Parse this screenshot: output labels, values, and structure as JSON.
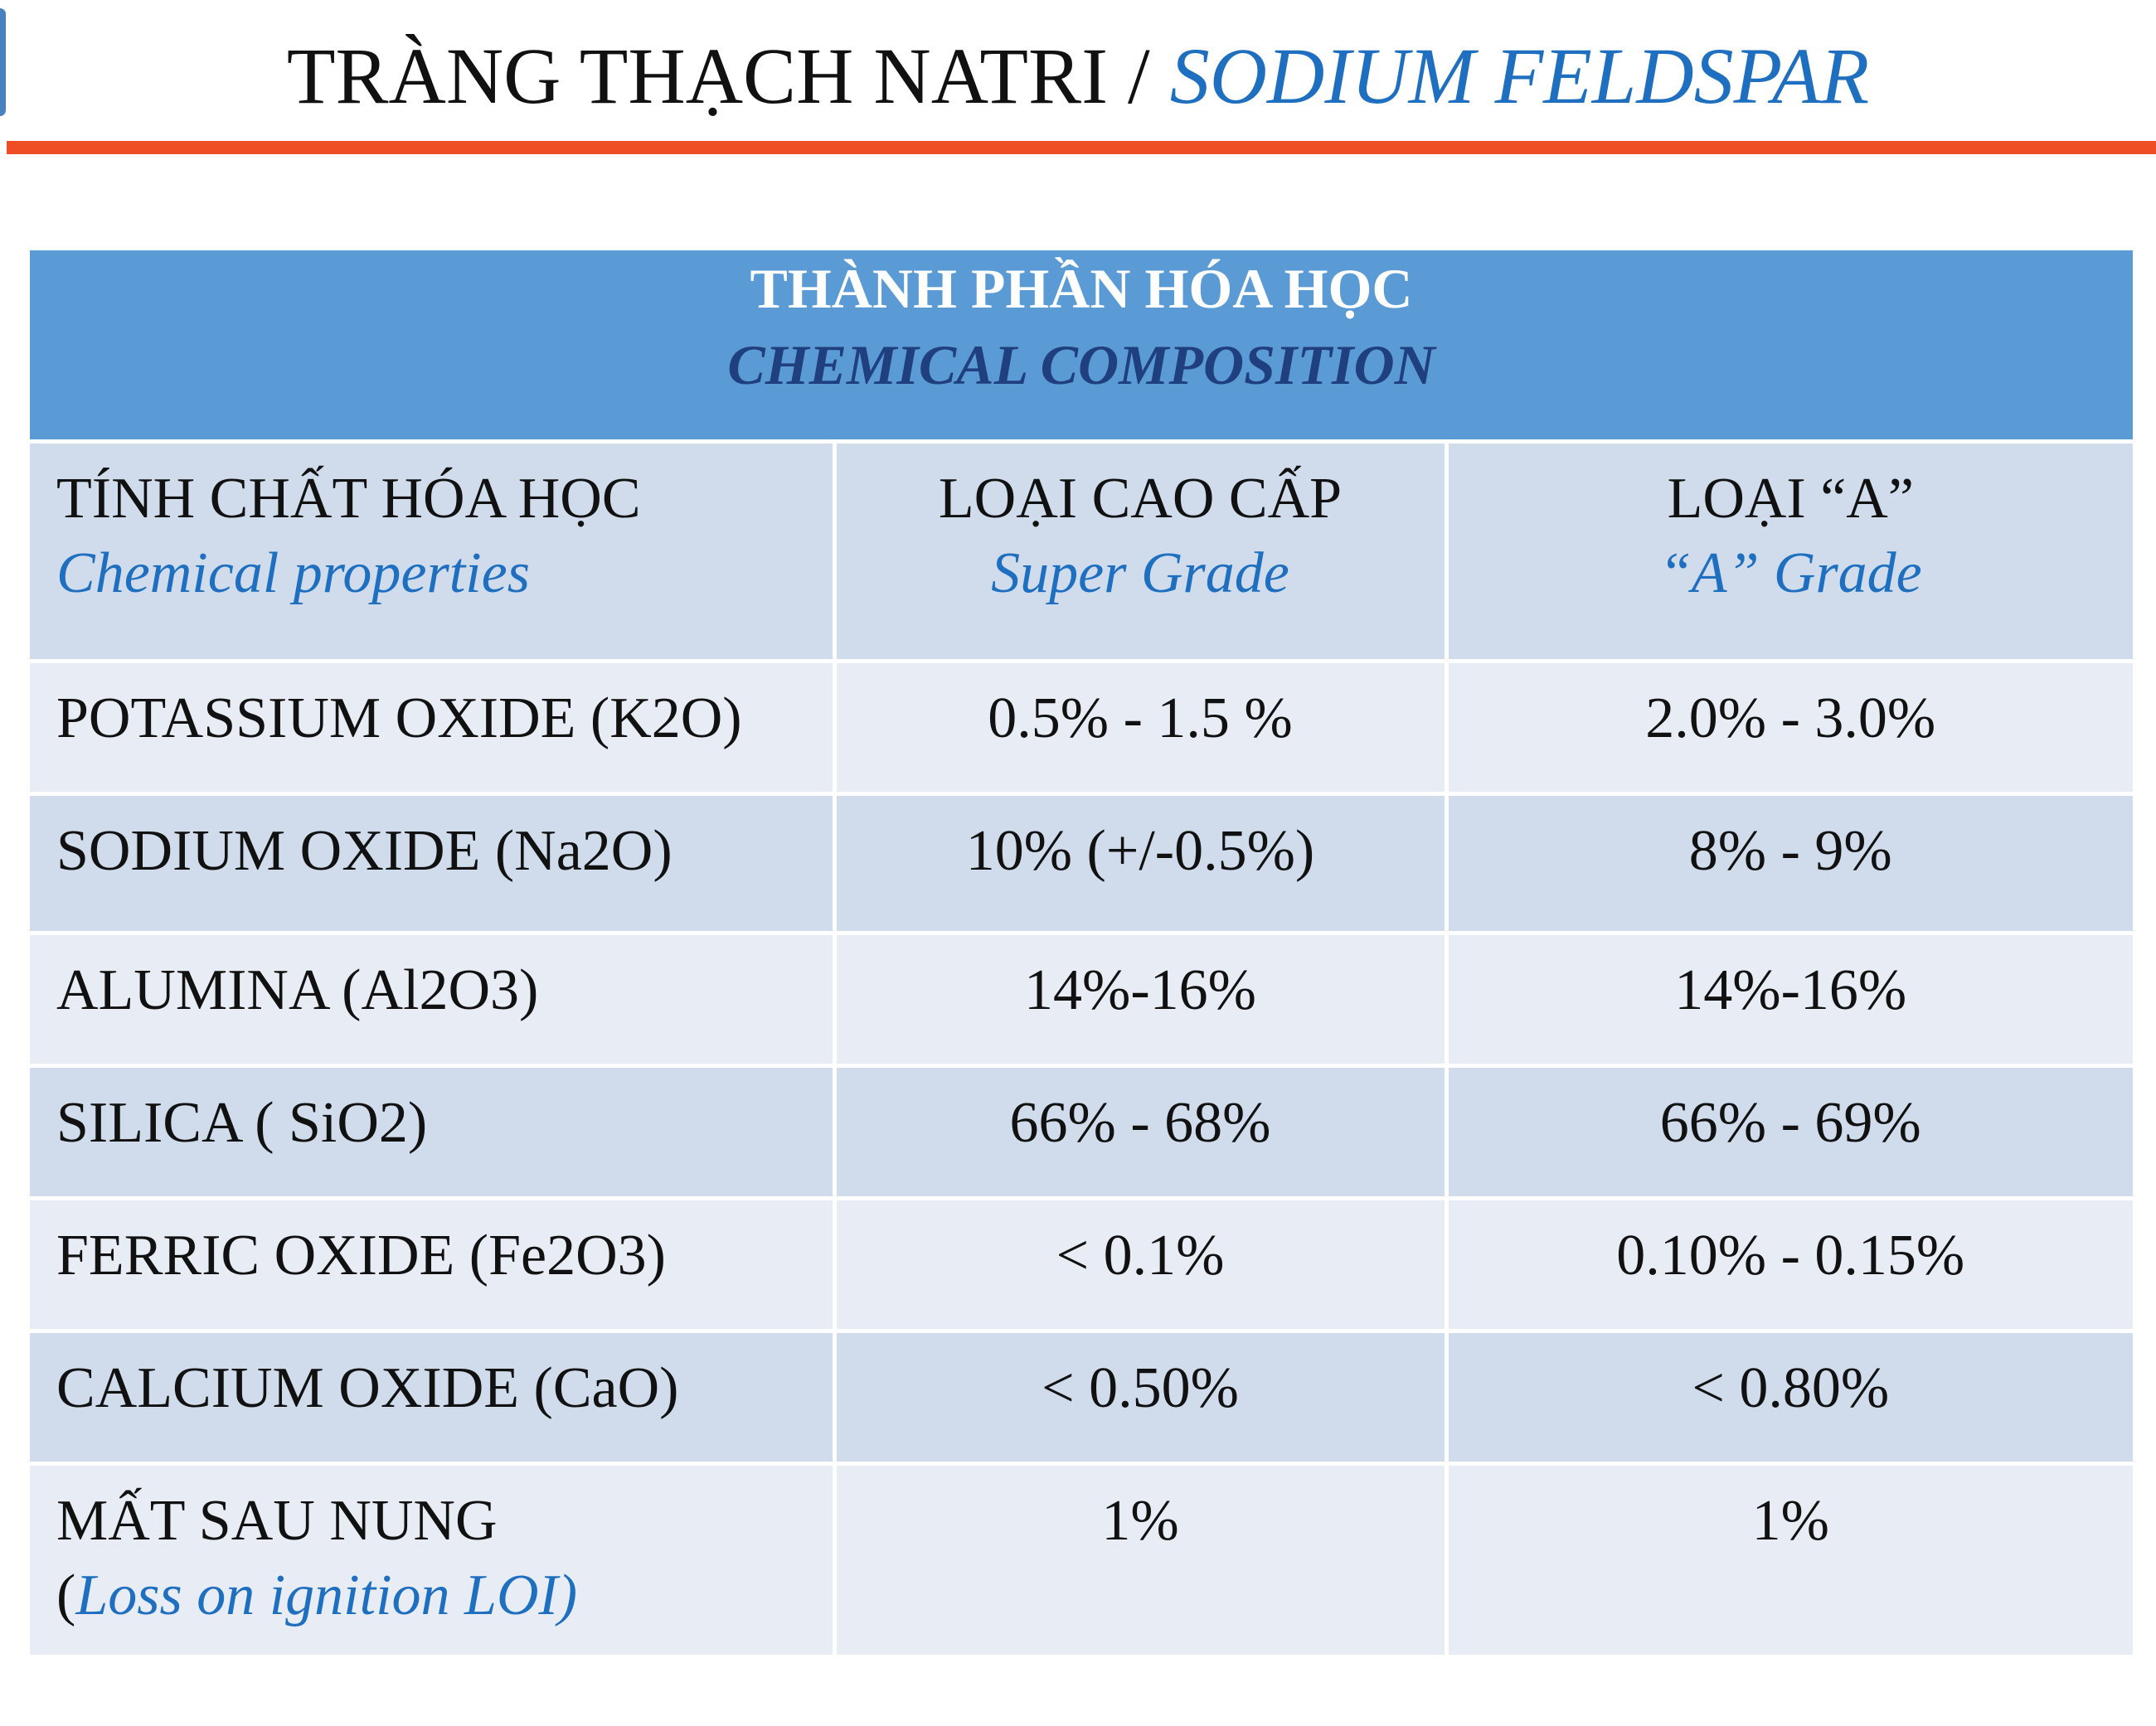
{
  "title": {
    "vi": "TRÀNG THẠCH NATRI",
    "separator": " / ",
    "en": "SODIUM FELDSPAR"
  },
  "colors": {
    "title_rule": "#ef4d23",
    "header_bg": "#5b9bd5",
    "header_en_text": "#1f3f7f",
    "accent_text": "#1f6fc0",
    "row_odd": "#d0dcec",
    "row_even": "#e8ecf4"
  },
  "table": {
    "header": {
      "vi": "THÀNH PHẦN HÓA HỌC",
      "en": "CHEMICAL COMPOSITION"
    },
    "columns": [
      {
        "vi": "TÍNH CHẤT HÓA HỌC",
        "en": "Chemical properties"
      },
      {
        "vi": "LOẠI CAO CẤP",
        "en": "Super Grade"
      },
      {
        "vi": "LOẠI “A”",
        "en": "“A” Grade"
      }
    ],
    "rows": [
      {
        "property": "POTASSIUM OXIDE (K2O)",
        "super": "0.5%  - 1.5 %",
        "a_grade": "2.0% - 3.0%"
      },
      {
        "property": "SODIUM OXIDE (Na2O)",
        "super": "10% (+/-0.5%)",
        "a_grade": "8% - 9%"
      },
      {
        "property": "ALUMINA (Al2O3)",
        "super": "14%-16%",
        "a_grade": "14%-16%"
      },
      {
        "property": "SILICA ( SiO2)",
        "super": "66% - 68%",
        "a_grade": "66% - 69%"
      },
      {
        "property": "FERRIC OXIDE (Fe2O3)",
        "super": "< 0.1%",
        "a_grade": "0.10% - 0.15%"
      },
      {
        "property": "CALCIUM OXIDE (CaO)",
        "super": "< 0.50%",
        "a_grade": "< 0.80%"
      }
    ],
    "last_row": {
      "property_vi": "MẤT SAU NUNG",
      "paren_open": "(",
      "property_en": "Loss on ignition  LOI)",
      "super": "1%",
      "a_grade": "1%"
    }
  }
}
